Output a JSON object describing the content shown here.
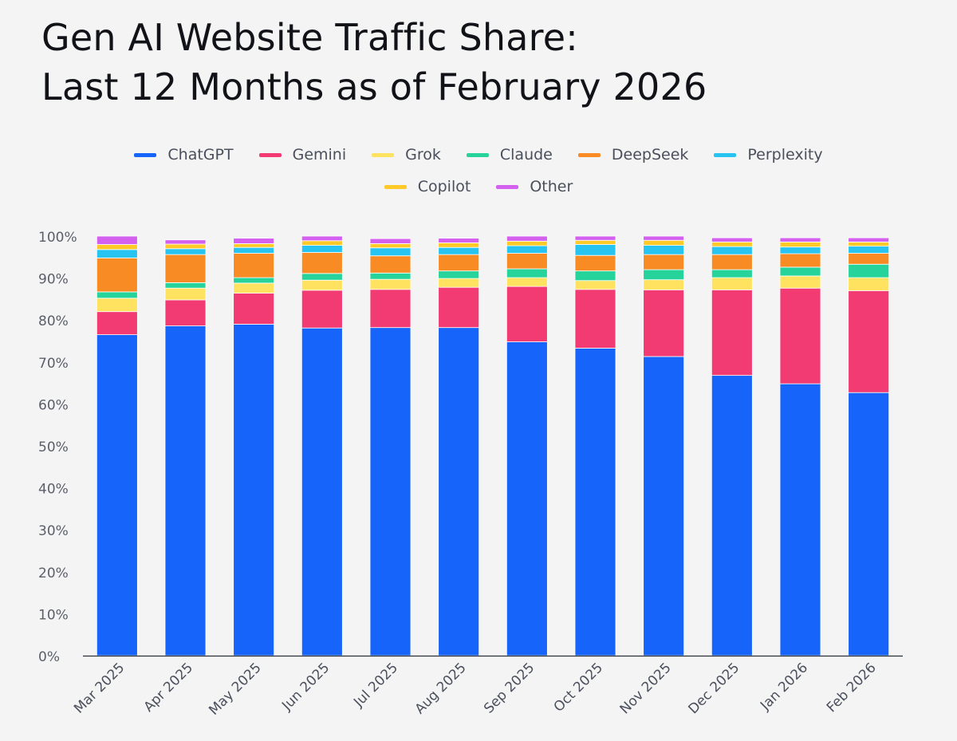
{
  "chart_data": {
    "type": "bar",
    "stacked": true,
    "title_lines": [
      "Gen AI Website Traffic Share:",
      "Last 12 Months as of February 2026"
    ],
    "xlabel": "",
    "ylabel": "",
    "ylim": [
      0,
      100
    ],
    "ytick_values": [
      0,
      10,
      20,
      30,
      40,
      50,
      60,
      70,
      80,
      90,
      100
    ],
    "ytick_labels": [
      "0%",
      "10%",
      "20%",
      "30%",
      "40%",
      "50%",
      "60%",
      "70%",
      "80%",
      "90%",
      "100%"
    ],
    "legend_position": "top-center",
    "categories": [
      "Mar 2025",
      "Apr 2025",
      "May 2025",
      "Jun 2025",
      "Jul 2025",
      "Aug 2025",
      "Sep 2025",
      "Oct 2025",
      "Nov 2025",
      "Dec 2025",
      "Jan 2026",
      "Feb 2026"
    ],
    "series": [
      {
        "name": "ChatGPT",
        "color": "#1764fa",
        "values": [
          76.5,
          78.6,
          79.0,
          78.1,
          78.2,
          78.2,
          74.8,
          73.3,
          71.3,
          66.8,
          64.8,
          62.7
        ]
      },
      {
        "name": "Gemini",
        "color": "#f23a73",
        "values": [
          5.5,
          6.2,
          7.4,
          9.0,
          9.1,
          9.6,
          13.2,
          14.0,
          15.9,
          20.4,
          22.8,
          24.3
        ]
      },
      {
        "name": "Grok",
        "color": "#ffe25f",
        "values": [
          3.2,
          2.8,
          2.4,
          2.4,
          2.4,
          2.1,
          2.1,
          2.1,
          2.4,
          2.9,
          2.9,
          3.1
        ]
      },
      {
        "name": "Claude",
        "color": "#26d49b",
        "values": [
          1.5,
          1.3,
          1.3,
          1.6,
          1.5,
          1.8,
          2.1,
          2.3,
          2.4,
          1.9,
          2.1,
          3.2
        ]
      },
      {
        "name": "DeepSeek",
        "color": "#f88b24",
        "values": [
          8.1,
          6.7,
          5.8,
          5.0,
          4.1,
          3.9,
          3.7,
          3.7,
          3.6,
          3.6,
          3.2,
          2.6
        ]
      },
      {
        "name": "Perplexity",
        "color": "#27c4f2",
        "values": [
          2.0,
          1.4,
          1.4,
          1.7,
          1.9,
          1.7,
          1.8,
          2.6,
          2.2,
          1.9,
          1.6,
          1.7
        ]
      },
      {
        "name": "Copilot",
        "color": "#ffc928",
        "values": [
          1.2,
          1.1,
          0.9,
          1.1,
          1.0,
          1.1,
          1.1,
          1.0,
          1.2,
          1.1,
          1.2,
          1.0
        ]
      },
      {
        "name": "Other",
        "color": "#d460f0",
        "values": [
          2.0,
          1.0,
          1.3,
          1.1,
          1.2,
          1.1,
          1.2,
          1.0,
          1.0,
          1.0,
          1.0,
          1.0
        ]
      }
    ]
  }
}
